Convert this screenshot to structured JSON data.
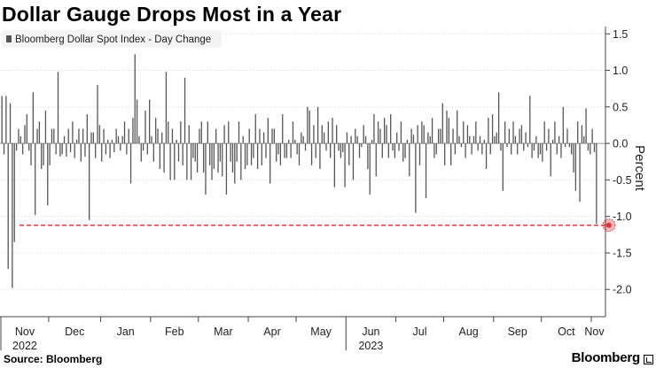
{
  "header": {
    "title": "Dollar Gauge Drops Most in a Year"
  },
  "footer": {
    "source": "Source: Bloomberg",
    "brand": "Bloomberg"
  },
  "chart_data": {
    "type": "bar",
    "title": "Dollar Gauge Drops Most in a Year",
    "series": [
      {
        "name": "Bloomberg Dollar Spot Index - Day Change",
        "color": "#555555",
        "values": [
          0.65,
          -0.15,
          0.65,
          -1.72,
          0.55,
          -1.98,
          -1.35,
          -0.1,
          0.2,
          0.1,
          -0.15,
          0.25,
          0.4,
          -0.1,
          -0.3,
          0.7,
          -0.98,
          0.2,
          0.3,
          -0.35,
          -0.3,
          0.45,
          -0.85,
          -0.3,
          0.2,
          0.2,
          -0.15,
          0.98,
          -0.18,
          -0.15,
          0.1,
          -0.18,
          0.2,
          -0.12,
          0.3,
          -0.2,
          0.05,
          0.2,
          -0.25,
          0.2,
          -0.18,
          0.4,
          -1.05,
          0.15,
          0.15,
          -0.2,
          0.8,
          0.25,
          -0.25,
          0.2,
          -0.15,
          0.05,
          -0.2,
          0.05,
          -0.12,
          0.2,
          0.1,
          -0.1,
          0.1,
          0.3,
          -0.15,
          0.2,
          -0.55,
          0.35,
          1.22,
          0.6,
          0.1,
          -0.25,
          -0.1,
          0.45,
          -0.15,
          0.6,
          0.1,
          -0.25,
          0.35,
          0.2,
          -0.35,
          0.15,
          -0.4,
          0.98,
          0.3,
          -0.5,
          0.2,
          -0.5,
          0.05,
          -0.25,
          0.3,
          -0.3,
          0.9,
          -0.5,
          0.25,
          -0.5,
          -0.2,
          -0.25,
          -0.4,
          0.2,
          0.3,
          -0.4,
          -0.7,
          0.3,
          -0.3,
          -0.5,
          -0.35,
          0.2,
          -0.4,
          -0.25,
          -0.45,
          0.25,
          -0.7,
          0.3,
          -0.25,
          -0.4,
          -0.55,
          -0.25,
          0.3,
          -0.5,
          0.1,
          -0.35,
          -0.3,
          0.2,
          -0.3,
          -0.2,
          0.4,
          -0.35,
          0.2,
          -0.3,
          0.15,
          -0.2,
          0.35,
          -0.55,
          0.2,
          0.2,
          -0.25,
          -0.15,
          -0.3,
          0.4,
          -0.2,
          -0.2,
          0.05,
          -0.2,
          0.3,
          0.05,
          -0.15,
          -0.3,
          0.15,
          0.1,
          -0.1,
          0.5,
          0.45,
          -0.3,
          0.25,
          -0.2,
          0.5,
          -0.35,
          0.25,
          0.15,
          -0.1,
          0.3,
          -0.2,
          0.35,
          -0.6,
          0.25,
          -0.1,
          -0.2,
          -0.12,
          -0.6,
          0.15,
          -0.3,
          0.1,
          -0.5,
          0.2,
          0.1,
          -0.2,
          -0.05,
          0.25,
          0.1,
          -0.35,
          -0.7,
          0.05,
          0.4,
          -0.45,
          0.3,
          0.2,
          -0.2,
          0.35,
          0.25,
          -0.2,
          0.4,
          -0.1,
          -0.2,
          0.15,
          -0.1,
          0.3,
          -0.25,
          -0.2,
          0.05,
          -0.45,
          0.2,
          0.12,
          -0.95,
          0.25,
          -0.3,
          0.3,
          0.25,
          -0.75,
          0.15,
          0.1,
          0.35,
          -0.2,
          -0.15,
          0.2,
          0.2,
          0.55,
          -0.3,
          0.45,
          0.35,
          -0.3,
          0.2,
          -0.15,
          0.45,
          0.1,
          -0.05,
          0.3,
          -0.2,
          0.25,
          0.1,
          -0.15,
          0.1,
          0.3,
          -0.1,
          0.1,
          -0.15,
          0.05,
          -0.35,
          0.35,
          -0.15,
          0.4,
          0.1,
          0.15,
          0.7,
          -0.1,
          -0.65,
          0.3,
          -0.05,
          0.2,
          -0.15,
          0.3,
          0.1,
          -0.15,
          0.2,
          0.25,
          -0.1,
          0.15,
          -0.05,
          0.65,
          -0.2,
          -0.1,
          0.1,
          -0.2,
          -0.15,
          -0.25,
          0.3,
          -0.1,
          0.2,
          -0.45,
          0.05,
          0.3,
          -0.15,
          0.1,
          -0.2,
          0.5,
          -0.05,
          0.2,
          -0.05,
          -0.15,
          -0.4,
          -0.65,
          0.3,
          -0.8,
          0.25,
          0.1,
          0.48,
          -0.1,
          -0.15,
          0.2,
          -0.12,
          -1.1
        ]
      }
    ],
    "highlight": {
      "index": 292,
      "value": -1.12,
      "reference_line": -1.12,
      "color": "#e8313b"
    },
    "y_axis": {
      "label": "Percent",
      "ylim": [
        -2.3,
        1.6
      ],
      "ticks": [
        1.5,
        1.0,
        0.5,
        0.0,
        -0.5,
        -1.0,
        -1.5,
        -2.0
      ],
      "tick_labels": [
        "1.5",
        "1.0",
        "0.5",
        "0.0",
        "-0.5",
        "-1.0",
        "-1.5",
        "-2.0"
      ],
      "position": "right"
    },
    "x_axis": {
      "months": [
        {
          "label": "Nov",
          "start": 0
        },
        {
          "label": "Dec",
          "start": 23
        },
        {
          "label": "Jan",
          "start": 48
        },
        {
          "label": "Feb",
          "start": 72
        },
        {
          "label": "Mar",
          "start": 95
        },
        {
          "label": "Apr",
          "start": 119
        },
        {
          "label": "May",
          "start": 142
        },
        {
          "label": "Jun",
          "start": 166
        },
        {
          "label": "Jul",
          "start": 190
        },
        {
          "label": "Aug",
          "start": 213
        },
        {
          "label": "Sep",
          "start": 237
        },
        {
          "label": "Oct",
          "start": 260
        },
        {
          "label": "Nov",
          "start": 284
        }
      ],
      "years": [
        {
          "label": "2022",
          "month_index": 0
        },
        {
          "label": "2023",
          "month_index": 7
        }
      ]
    },
    "grid": true,
    "legend": {
      "placement": "top-left"
    }
  }
}
